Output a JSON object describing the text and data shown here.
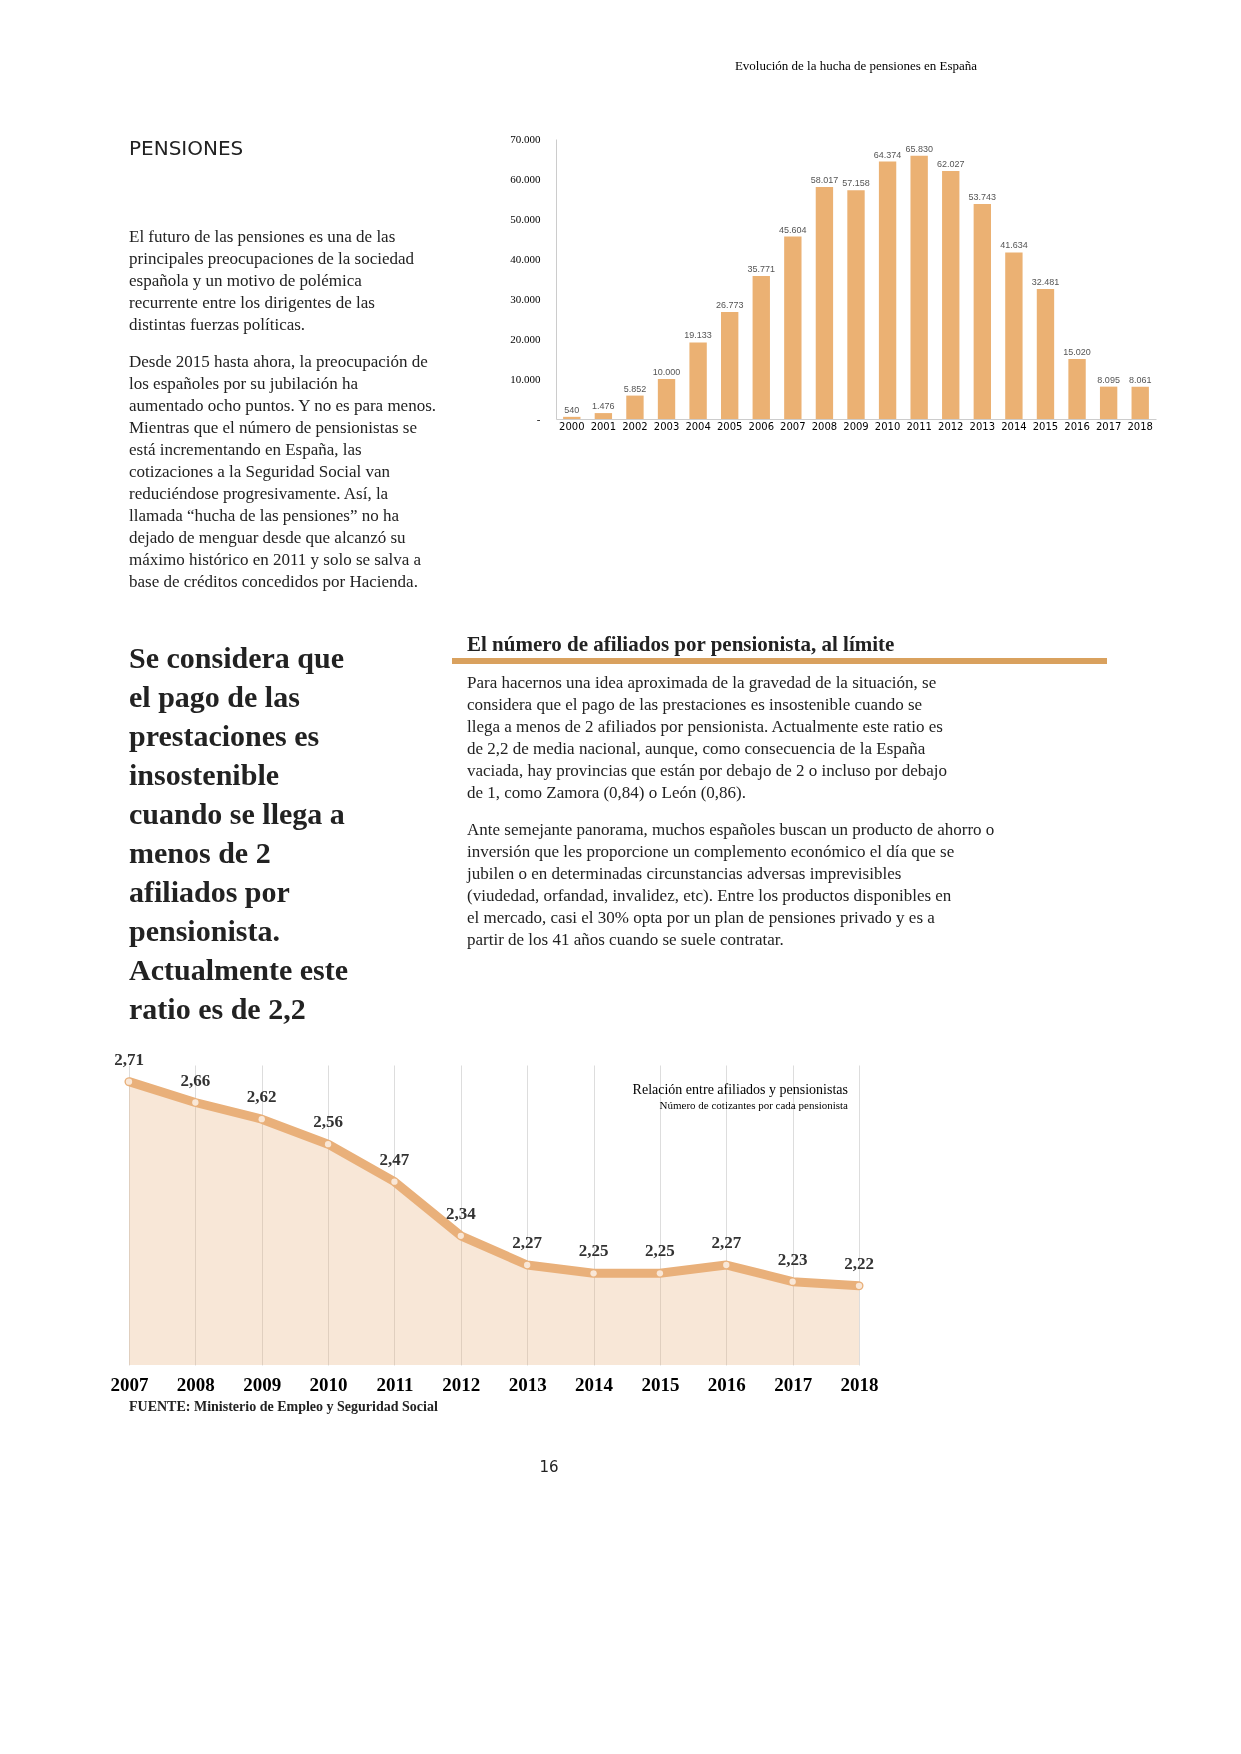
{
  "chart_data": [
    {
      "type": "other",
      "title": "PENSIONES",
      "annotations": [
        "El futuro de las pensiones es una de las principales preocupaciones de la sociedad española y un motivo de polémica recurrente entre los dirigentes de las distintas fuerzas políticas.",
        "Desde 2015 hasta ahora, la preocupación de los españoles por su jubilación ha aumentado ocho puntos. Y no es para menos. Mientras que el número de pensionistas se está incrementando en España, las cotizaciones a la Seguridad Social van reduciéndose progresivamente. Así, la llamada “hucha de las pensiones” no ha dejado de menguar desde que alcanzó su máximo histórico en 2011 y solo se salva a base de créditos concedidos por Hacienda."
      ]
    },
    {
      "type": "bar",
      "title": "Evolución de la hucha de pensiones en España",
      "categories": [
        "2000",
        "2001",
        "2002",
        "2003",
        "2004",
        "2005",
        "2006",
        "2007",
        "2008",
        "2009",
        "2010",
        "2011",
        "2012",
        "2013",
        "2014",
        "2015",
        "2016",
        "2017",
        "2018"
      ],
      "values": [
        540,
        1476,
        5852,
        10000,
        19133,
        26773,
        35771,
        45604,
        58017,
        57158,
        64374,
        65830,
        62027,
        53743,
        41634,
        32481,
        15020,
        8095,
        8061
      ],
      "value_labels": [
        "540",
        "1.476",
        "5.852",
        "10.000",
        "19.133",
        "26.773",
        "35.771",
        "45.604",
        "58.017",
        "57.158",
        "64.374",
        "65.830",
        "62.027",
        "53.743",
        "41.634",
        "32.481",
        "15.020",
        "8.095",
        "8.061"
      ],
      "color": "#ebb173",
      "ylim": [
        0,
        70000
      ],
      "yticks": [
        {
          "value": 0,
          "label": "-"
        },
        {
          "value": 10000,
          "label": "10.000"
        },
        {
          "value": 20000,
          "label": "20.000"
        },
        {
          "value": 30000,
          "label": "30.000"
        },
        {
          "value": 40000,
          "label": "40.000"
        },
        {
          "value": 50000,
          "label": "50.000"
        },
        {
          "value": 60000,
          "label": "60.000"
        },
        {
          "value": 70000,
          "label": "70.000"
        }
      ],
      "grid": false
    },
    {
      "type": "other",
      "title": "El número de afiliados por pensionista, al límite",
      "annotations": [
        "Se considera que el pago de las prestaciones es insostenible cuando se llega a menos de 2 afiliados por pensionista. Actualmente este ratio es de 2,2",
        "Para hacernos una idea aproximada de la gravedad de la situación, se considera que el pago de las prestaciones es insostenible cuando se llega a menos de 2 afiliados por pensionista. Actualmente este ratio es de 2,2 de media nacional, aunque, como consecuencia de la España vaciada, hay provincias que están por debajo de 2 o incluso por debajo de 1, como Zamora (0,84) o León (0,86).",
        "Ante semejante panorama, muchos españoles buscan un producto de ahorro o inversión que les proporcione un complemento económico el día que se jubilen o en determinadas circunstancias adversas imprevisibles (viudedad, orfandad, invalidez, etc). Entre los productos disponibles en el mercado, casi el 30% opta por un plan de pensiones privado y es a partir de los 41 años cuando se suele contratar."
      ]
    },
    {
      "type": "area",
      "title": "Relación entre afiliados y pensionistas",
      "subtitle": "Número de cotizantes por cada pensionista",
      "categories": [
        "2007",
        "2008",
        "2009",
        "2010",
        "2011",
        "2012",
        "2013",
        "2014",
        "2015",
        "2016",
        "2017",
        "2018"
      ],
      "values": [
        2.71,
        2.66,
        2.62,
        2.56,
        2.47,
        2.34,
        2.27,
        2.25,
        2.25,
        2.27,
        2.23,
        2.22
      ],
      "value_labels": [
        "2,71",
        "2,66",
        "2,62",
        "2,56",
        "2,47",
        "2,34",
        "2,27",
        "2,25",
        "2,25",
        "2,27",
        "2,23",
        "2,22"
      ],
      "color": "#e9b07a",
      "ylim": [
        2.03,
        2.75
      ],
      "tick_labels": "x",
      "grid": "x",
      "marker": "circle",
      "annotations": [
        "FUENTE: Ministerio de Empleo y Seguridad Social",
        "16"
      ]
    }
  ]
}
